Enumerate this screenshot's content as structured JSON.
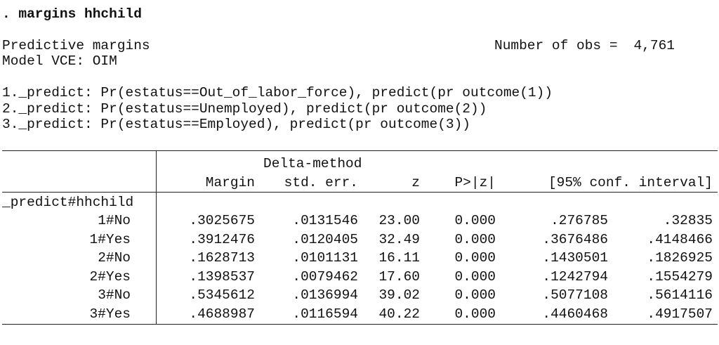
{
  "command": ". margins hhchild",
  "header": {
    "title": "Predictive margins",
    "obs_label": "Number of obs =",
    "obs_value": "4,761",
    "vce": "Model VCE: OIM"
  },
  "predict_notes": [
    "1._predict: Pr(estatus==Out_of_labor_force), predict(pr outcome(1))",
    "2._predict: Pr(estatus==Unemployed), predict(pr outcome(2))",
    "3._predict: Pr(estatus==Employed), predict(pr outcome(3))"
  ],
  "table": {
    "header_top": "Delta-method",
    "columns": [
      "Margin",
      "std. err.",
      "z",
      "P>|z|",
      "[95% conf. interval]"
    ],
    "group_label": "_predict#hhchild",
    "rows": [
      [
        "1#No",
        ".3025675",
        ".0131546",
        "23.00",
        "0.000",
        ".276785",
        ".32835"
      ],
      [
        "1#Yes",
        ".3912476",
        ".0120405",
        "32.49",
        "0.000",
        ".3676486",
        ".4148466"
      ],
      [
        "2#No",
        ".1628713",
        ".0101131",
        "16.11",
        "0.000",
        ".1430501",
        ".1826925"
      ],
      [
        "2#Yes",
        ".1398537",
        ".0079462",
        "17.60",
        "0.000",
        ".1242794",
        ".1554279"
      ],
      [
        "3#No",
        ".5345612",
        ".0136994",
        "39.02",
        "0.000",
        ".5077108",
        ".5614116"
      ],
      [
        "3#Yes",
        ".4688987",
        ".0116594",
        "40.22",
        "0.000",
        ".4460468",
        ".4917507"
      ]
    ]
  }
}
